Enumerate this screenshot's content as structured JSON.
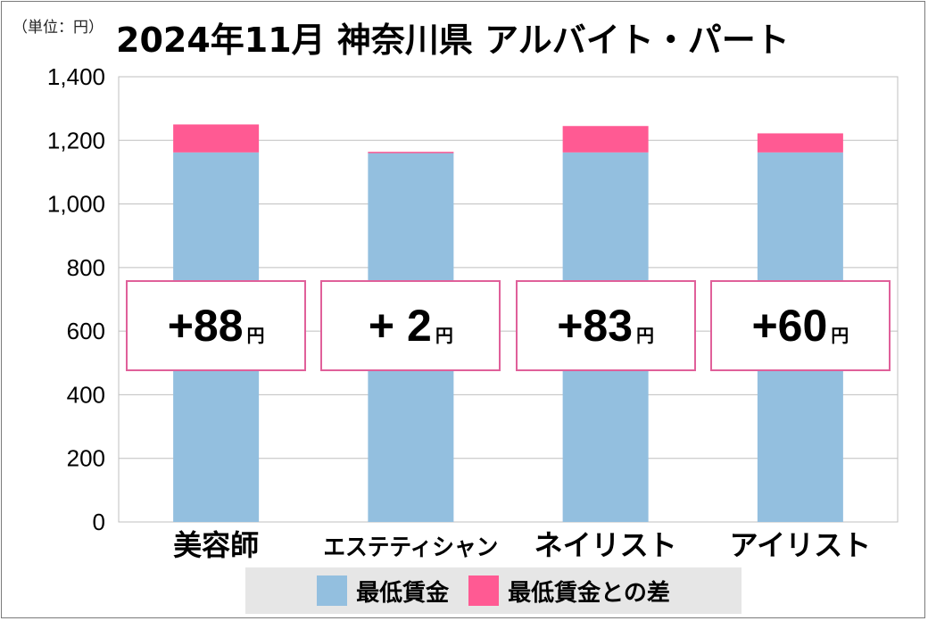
{
  "unit_note": "（単位：円）",
  "title": "2024年11月 神奈川県 アルバイト・パート",
  "colors": {
    "base": "#93bfdf",
    "diff": "#ff5a93",
    "grid": "#bfbfbf",
    "box_border": "#e0609a"
  },
  "chart_data": {
    "type": "bar",
    "stacked": true,
    "categories": [
      "美容師",
      "エステティシャン",
      "ネイリスト",
      "アイリスト"
    ],
    "series": [
      {
        "name": "最低賃金",
        "values": [
          1162,
          1162,
          1162,
          1162
        ]
      },
      {
        "name": "最低賃金との差",
        "values": [
          88,
          2,
          83,
          60
        ]
      }
    ],
    "ylim": [
      0,
      1400
    ],
    "yticks": [
      "0",
      "200",
      "400",
      "600",
      "800",
      "1,000",
      "1,200",
      "1,400"
    ],
    "grid": true,
    "legend_position": "bottom",
    "annotations": [
      {
        "text": "+88",
        "unit": "円"
      },
      {
        "text": "+ 2",
        "unit": "円"
      },
      {
        "text": "+83",
        "unit": "円"
      },
      {
        "text": "+60",
        "unit": "円"
      }
    ]
  }
}
